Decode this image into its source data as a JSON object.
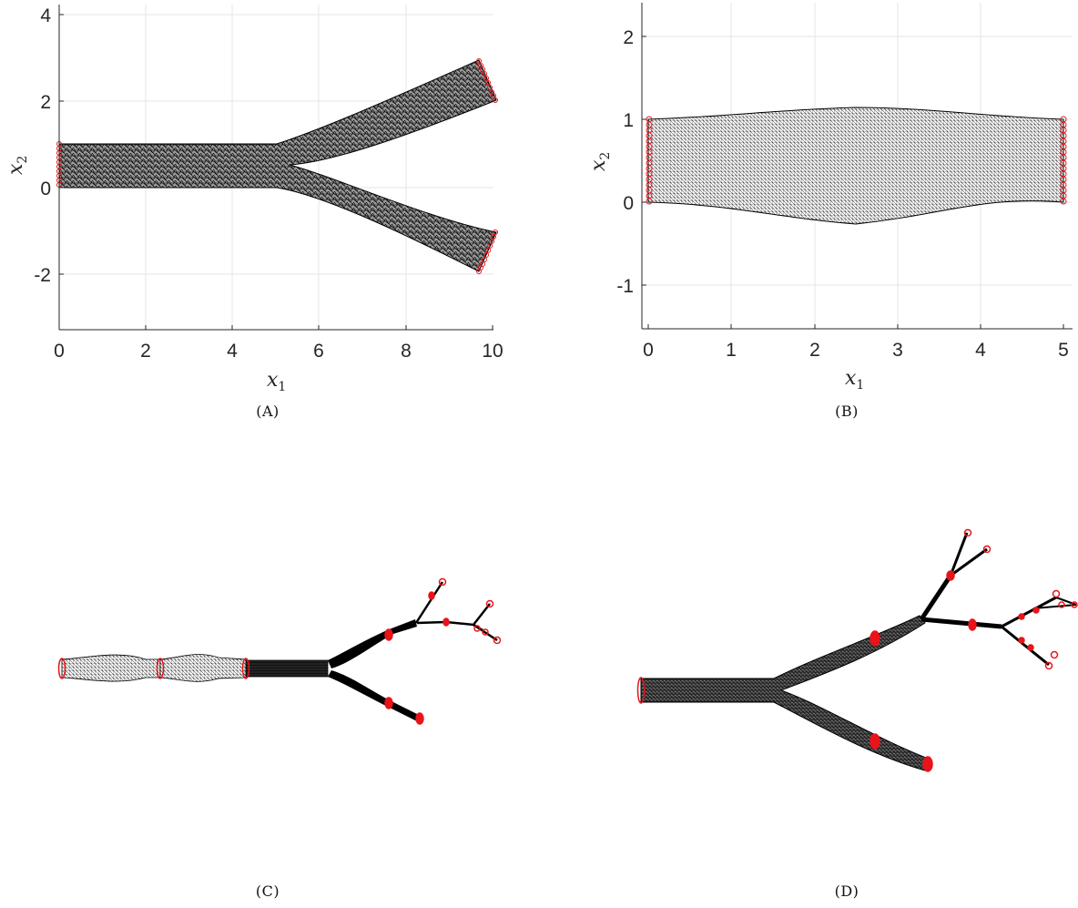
{
  "colors": {
    "mesh": "#000000",
    "boundary_marker": "#e8141a",
    "mesh_fill_light": "#7d7d7d",
    "axis": "#262626",
    "grid": "#e6e6e6"
  },
  "panels": [
    {
      "id": "A",
      "caption": "(A)",
      "xlabel": "x",
      "xlabel_sub": "1",
      "ylabel": "x",
      "ylabel_sub": "2",
      "x_ticks": [
        "0",
        "2",
        "4",
        "6",
        "8",
        "10"
      ],
      "y_ticks": [
        "-2",
        "0",
        "2",
        "4"
      ],
      "xlim": [
        0,
        10
      ],
      "ylim": [
        -3.2,
        4.2
      ],
      "grid": true,
      "description": "bifurcating mesh domain"
    },
    {
      "id": "B",
      "caption": "(B)",
      "xlabel": "x",
      "xlabel_sub": "1",
      "ylabel": "x",
      "ylabel_sub": "2",
      "x_ticks": [
        "0",
        "1",
        "2",
        "3",
        "4",
        "5"
      ],
      "y_ticks": [
        "-1",
        "0",
        "1",
        "2"
      ],
      "xlim": [
        -0.08,
        5.08
      ],
      "ylim": [
        -1.55,
        2.4
      ],
      "grid": true,
      "description": "structured stenosis-like mesh"
    },
    {
      "id": "C",
      "caption": "(C)"
    },
    {
      "id": "D",
      "caption": "(D)"
    }
  ]
}
